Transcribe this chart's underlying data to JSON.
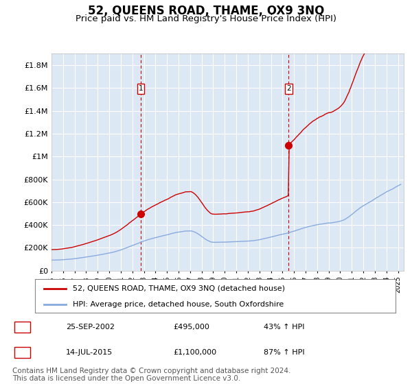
{
  "title": "52, QUEENS ROAD, THAME, OX9 3NQ",
  "subtitle": "Price paid vs. HM Land Registry's House Price Index (HPI)",
  "title_fontsize": 12,
  "subtitle_fontsize": 9.5,
  "plot_bg_color": "#dde8f5",
  "fig_bg_color": "#ffffff",
  "grid_color": "#ffffff",
  "ylim": [
    0,
    1900000
  ],
  "yticks": [
    0,
    200000,
    400000,
    600000,
    800000,
    1000000,
    1200000,
    1400000,
    1600000,
    1800000
  ],
  "ytick_labels": [
    "£0",
    "£200K",
    "£400K",
    "£600K",
    "£800K",
    "£1M",
    "£1.2M",
    "£1.4M",
    "£1.6M",
    "£1.8M"
  ],
  "xlim_start": 1995.0,
  "xlim_end": 2025.5,
  "sale1_x": 2002.73,
  "sale1_y": 495000,
  "sale1_label": "1",
  "sale1_date": "25-SEP-2002",
  "sale1_price": "£495,000",
  "sale1_hpi": "43% ↑ HPI",
  "sale2_x": 2015.54,
  "sale2_y": 1100000,
  "sale2_label": "2",
  "sale2_date": "14-JUL-2015",
  "sale2_price": "£1,100,000",
  "sale2_hpi": "87% ↑ HPI",
  "red_line_color": "#cc0000",
  "blue_line_color": "#88aadd",
  "marker_box_color": "#cc0000",
  "vline_color": "#cc0000",
  "legend_label_red": "52, QUEENS ROAD, THAME, OX9 3NQ (detached house)",
  "legend_label_blue": "HPI: Average price, detached house, South Oxfordshire",
  "footnote": "Contains HM Land Registry data © Crown copyright and database right 2024.\nThis data is licensed under the Open Government Licence v3.0.",
  "footnote_fontsize": 7.5
}
